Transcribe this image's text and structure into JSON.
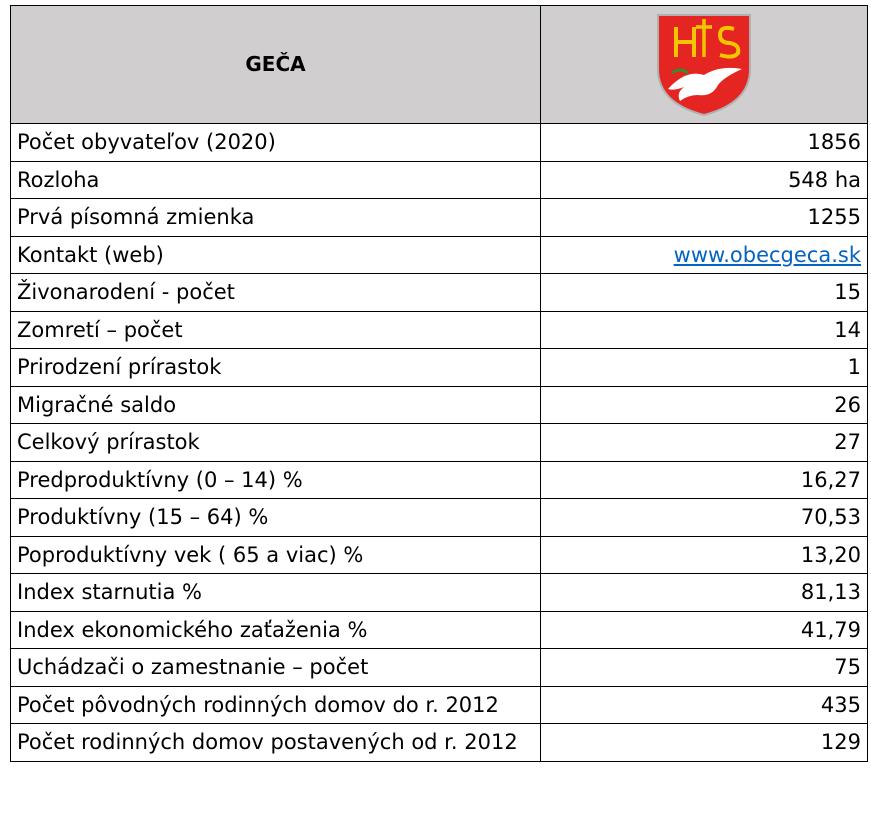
{
  "header": {
    "title": "GEČA"
  },
  "table": {
    "rows": [
      [
        "Počet obyvateľov (2020)",
        "1856"
      ],
      [
        "Rozloha",
        "548 ha"
      ],
      [
        "Prvá písomná zmienka",
        "1255"
      ],
      [
        "Kontakt (web)",
        "www.obecgeca.sk"
      ],
      [
        "Živonarodení - počet",
        "15"
      ],
      [
        "Zomretí – počet",
        "14"
      ],
      [
        "Prirodzení prírastok",
        "1"
      ],
      [
        "Migračné saldo",
        "26"
      ],
      [
        "Celkový prírastok",
        "27"
      ],
      [
        "Predproduktívny (0 – 14) %",
        "16,27"
      ],
      [
        "Produktívny (15 – 64) %",
        "70,53"
      ],
      [
        "Poproduktívny vek ( 65 a viac) %",
        "13,20"
      ],
      [
        "Index starnutia %",
        "81,13"
      ],
      [
        "Index ekonomického zaťaženia %",
        "41,79"
      ],
      [
        "Uchádzači o zamestnanie – počet",
        "75"
      ],
      [
        "Počet pôvodných rodinných domov do r. 2012",
        "435"
      ],
      [
        "Počet rodinných domov postavených od r. 2012",
        "129"
      ]
    ]
  }
}
